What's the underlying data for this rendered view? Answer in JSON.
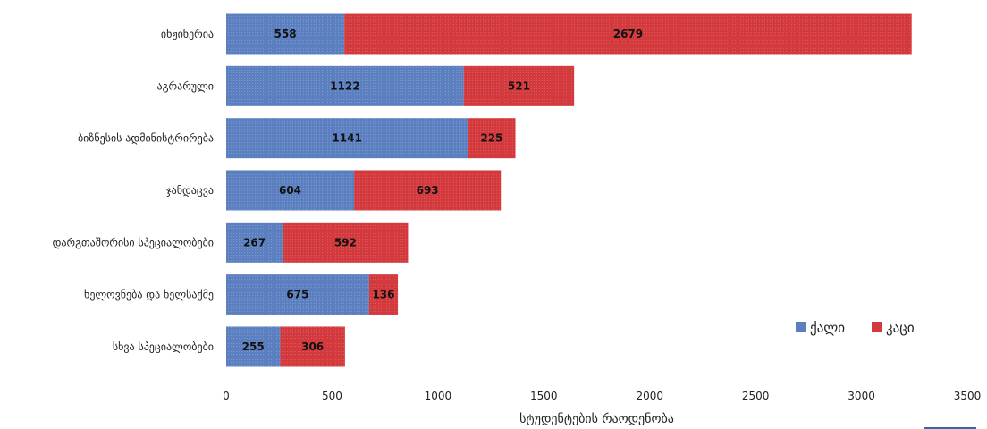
{
  "chart_data": {
    "type": "bar",
    "orientation": "horizontal",
    "stacked": true,
    "categories": [
      "ინჟინერია",
      "აგრარული",
      "ბიზნესის ადმინისტრირება",
      "ჯანდაცვა",
      "დარგთაშორისი სპეციალობები",
      "ხელოვნება და ხელსაქმე",
      "სხვა სპეციალობები"
    ],
    "series": [
      {
        "name": "ქალი",
        "color": "#5b7fbf",
        "values": [
          558,
          1122,
          1141,
          604,
          267,
          675,
          255
        ]
      },
      {
        "name": "კაცი",
        "color": "#d33a3e",
        "values": [
          2679,
          521,
          225,
          693,
          592,
          136,
          306
        ]
      }
    ],
    "xlabel": "სტუდენტების რაოდენობა",
    "xlim": [
      0,
      3500
    ],
    "xticks": [
      0,
      500,
      1000,
      1500,
      2000,
      2500,
      3000,
      3500
    ],
    "legend_position": "bottom-right",
    "grid": false
  },
  "decor": {
    "corner_strip_color": "#3d62b0"
  }
}
